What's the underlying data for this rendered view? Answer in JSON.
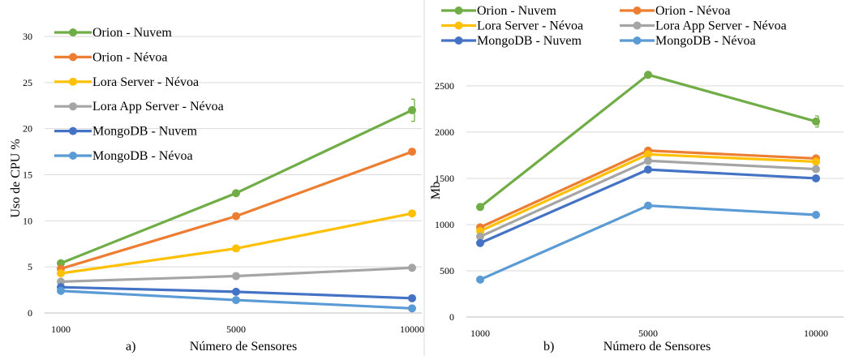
{
  "chart_data": [
    {
      "type": "line",
      "panel_label": "a)",
      "xlabel": "Número de Sensores",
      "ylabel": "Uso de CPU  %",
      "categories": [
        "1000",
        "5000",
        "10000"
      ],
      "y_ticks": [
        0,
        5,
        10,
        15,
        20,
        25,
        30
      ],
      "ylim": [
        0,
        30
      ],
      "grid": true,
      "legend_placement": "top-left",
      "series": [
        {
          "name": "Orion - Nuvem",
          "color": "#70AD47",
          "values": [
            5.4,
            13.0,
            22.0
          ],
          "error": [
            0,
            0,
            1.2
          ]
        },
        {
          "name": "Orion - Névoa",
          "color": "#ED7D31",
          "values": [
            4.8,
            10.5,
            17.5
          ],
          "error": [
            0,
            0,
            0
          ]
        },
        {
          "name": "Lora Server - Névoa",
          "color": "#FFC000",
          "values": [
            4.3,
            7.0,
            10.8
          ],
          "error": [
            0,
            0,
            0
          ]
        },
        {
          "name": "Lora App Server - Névoa",
          "color": "#A5A5A5",
          "values": [
            3.4,
            4.0,
            4.9
          ],
          "error": [
            0,
            0,
            0
          ]
        },
        {
          "name": "MongoDB - Nuvem",
          "color": "#4472C4",
          "values": [
            2.8,
            2.3,
            1.6
          ],
          "error": [
            0,
            0,
            0
          ]
        },
        {
          "name": "MongoDB - Névoa",
          "color": "#5B9BD5",
          "values": [
            2.4,
            1.4,
            0.5
          ],
          "error": [
            0,
            0,
            0
          ]
        }
      ]
    },
    {
      "type": "line",
      "panel_label": "b)",
      "xlabel": "Número de Sensores",
      "ylabel": "Mb",
      "categories": [
        "1000",
        "5000",
        "10000"
      ],
      "y_ticks": [
        0,
        500,
        1000,
        1500,
        2000,
        2500
      ],
      "ylim": [
        0,
        2850
      ],
      "grid": true,
      "legend_placement": "top",
      "series": [
        {
          "name": "Orion - Nuvem",
          "color": "#70AD47",
          "values": [
            1190,
            2620,
            2115
          ],
          "error": [
            0,
            30,
            60
          ]
        },
        {
          "name": "Orion - Névoa",
          "color": "#ED7D31",
          "values": [
            970,
            1800,
            1715
          ],
          "error": [
            0,
            0,
            0
          ]
        },
        {
          "name": "Lora Server - Névoa",
          "color": "#FFC000",
          "values": [
            930,
            1760,
            1680
          ],
          "error": [
            0,
            0,
            0
          ]
        },
        {
          "name": "Lora App Server - Névoa",
          "color": "#A5A5A5",
          "values": [
            870,
            1690,
            1600
          ],
          "error": [
            0,
            0,
            0
          ]
        },
        {
          "name": "MongoDB - Nuvem",
          "color": "#4472C4",
          "values": [
            800,
            1595,
            1500
          ],
          "error": [
            0,
            0,
            0
          ]
        },
        {
          "name": "MongoDB - Névoa",
          "color": "#5B9BD5",
          "values": [
            405,
            1205,
            1105
          ],
          "error": [
            0,
            0,
            0
          ]
        }
      ]
    }
  ]
}
